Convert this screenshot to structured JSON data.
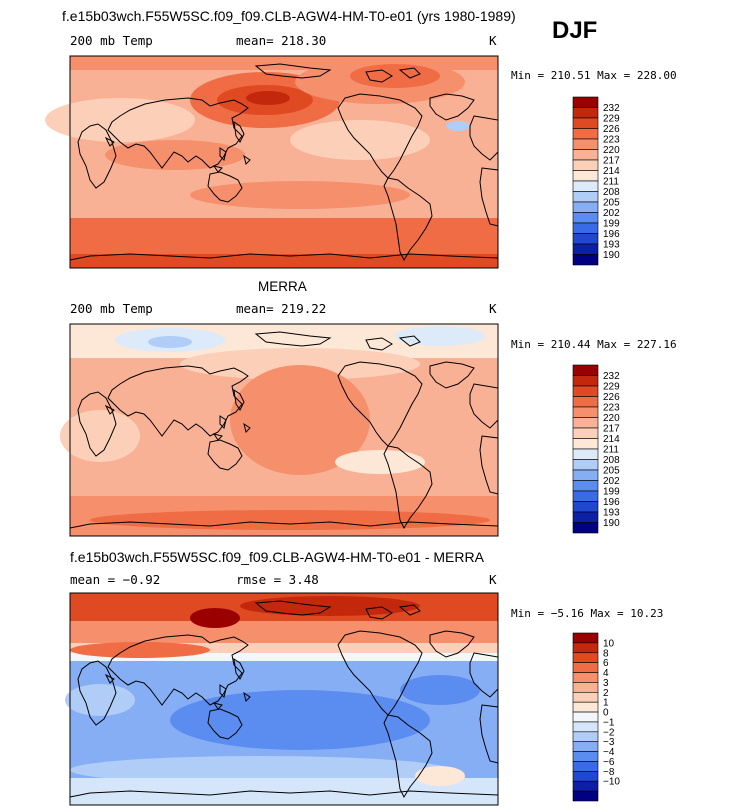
{
  "figure": {
    "title": "f.e15b03wch.F55W5SC.f09_f09.CLB-AGW4-HM-T0-e01 (yrs 1980-1989)",
    "season": "DJF"
  },
  "colors": {
    "temp_scale": [
      "#000080",
      "#0d1fa6",
      "#1f48cf",
      "#3a6be6",
      "#5b8cf0",
      "#85aef5",
      "#b0cdf8",
      "#dceafa",
      "#fde8d8",
      "#fcd0b8",
      "#f9b195",
      "#f68f6c",
      "#f06c45",
      "#e04a23",
      "#c4280c",
      "#9b0000"
    ],
    "diff_scale": [
      "#000080",
      "#0d1fa6",
      "#1f48cf",
      "#3a6be6",
      "#5b8cf0",
      "#85aef5",
      "#b0cdf8",
      "#d6e6fa",
      "#f3f7fc",
      "#fde8d8",
      "#fcd0b8",
      "#f9b195",
      "#f68f6c",
      "#f06c45",
      "#e04a23",
      "#c4280c",
      "#9b0000"
    ]
  },
  "chart_data": [
    {
      "type": "heatmap",
      "title": "",
      "field_label": "200 mb Temp",
      "mean_text": "mean= 218.30",
      "units": "K",
      "minmax_text": "Min = 210.51 Max = 228.00",
      "min": 210.51,
      "max": 228.0,
      "mean": 218.3,
      "colorbar_levels": [
        "232",
        "229",
        "226",
        "223",
        "220",
        "217",
        "214",
        "211",
        "208",
        "205",
        "202",
        "199",
        "196",
        "193",
        "190"
      ]
    },
    {
      "type": "heatmap",
      "title": "MERRA",
      "field_label": "200 mb Temp",
      "mean_text": "mean= 219.22",
      "units": "K",
      "minmax_text": "Min = 210.44 Max = 227.16",
      "min": 210.44,
      "max": 227.16,
      "mean": 219.22,
      "colorbar_levels": [
        "232",
        "229",
        "226",
        "223",
        "220",
        "217",
        "214",
        "211",
        "208",
        "205",
        "202",
        "199",
        "196",
        "193",
        "190"
      ]
    },
    {
      "type": "heatmap",
      "title": "f.e15b03wch.F55W5SC.f09_f09.CLB-AGW4-HM-T0-e01 - MERRA",
      "mean_text": "mean =   −0.92",
      "rmse_text": "rmse =    3.48",
      "units": "K",
      "minmax_text": "Min =  −5.16 Max =  10.23",
      "min": -5.16,
      "max": 10.23,
      "mean": -0.92,
      "rmse": 3.48,
      "colorbar_levels": [
        "10",
        "8",
        "6",
        "4",
        "3",
        "2",
        "1",
        "0",
        "−1",
        "−2",
        "−3",
        "−4",
        "−6",
        "−8",
        "−10"
      ]
    }
  ]
}
